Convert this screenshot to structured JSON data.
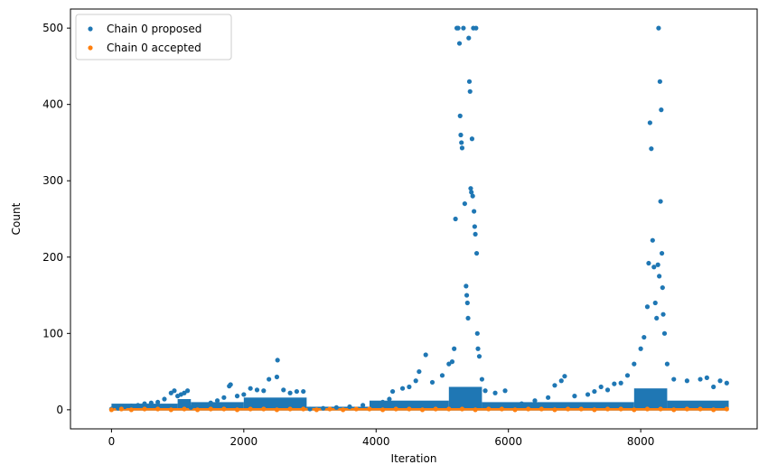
{
  "chart_data": {
    "type": "scatter",
    "title": "",
    "xlabel": "Iteration",
    "ylabel": "Count",
    "xlim": [
      -620,
      9760
    ],
    "ylim": [
      -25,
      525
    ],
    "xticks": [
      0,
      2000,
      4000,
      6000,
      8000
    ],
    "yticks": [
      0,
      100,
      200,
      300,
      400,
      500
    ],
    "xtick_labels": [
      "0",
      "2000",
      "4000",
      "6000",
      "8000"
    ],
    "ytick_labels": [
      "0",
      "100",
      "200",
      "300",
      "400",
      "500"
    ],
    "grid": false,
    "legend_position": "top-left",
    "series": [
      {
        "name": "Chain 0 proposed",
        "color": "#1f77b4",
        "points": [
          [
            0,
            1
          ],
          [
            100,
            2
          ],
          [
            200,
            4
          ],
          [
            300,
            5
          ],
          [
            400,
            6
          ],
          [
            500,
            8
          ],
          [
            600,
            9
          ],
          [
            700,
            10
          ],
          [
            800,
            14
          ],
          [
            900,
            22
          ],
          [
            950,
            25
          ],
          [
            1000,
            18
          ],
          [
            1050,
            20
          ],
          [
            1100,
            22
          ],
          [
            1150,
            25
          ],
          [
            1200,
            3
          ],
          [
            1300,
            4
          ],
          [
            1400,
            6
          ],
          [
            1500,
            9
          ],
          [
            1600,
            12
          ],
          [
            1700,
            16
          ],
          [
            1780,
            31
          ],
          [
            1800,
            33
          ],
          [
            1900,
            18
          ],
          [
            2000,
            20
          ],
          [
            2100,
            28
          ],
          [
            2200,
            26
          ],
          [
            2300,
            25
          ],
          [
            2380,
            40
          ],
          [
            2500,
            43
          ],
          [
            2510,
            65
          ],
          [
            2600,
            26
          ],
          [
            2700,
            22
          ],
          [
            2800,
            24
          ],
          [
            2900,
            24
          ],
          [
            3000,
            1
          ],
          [
            3200,
            2
          ],
          [
            3400,
            3
          ],
          [
            3600,
            4
          ],
          [
            3800,
            6
          ],
          [
            4000,
            8
          ],
          [
            4100,
            10
          ],
          [
            4200,
            14
          ],
          [
            4250,
            24
          ],
          [
            4400,
            28
          ],
          [
            4500,
            30
          ],
          [
            4600,
            38
          ],
          [
            4650,
            50
          ],
          [
            4750,
            72
          ],
          [
            4850,
            36
          ],
          [
            5000,
            45
          ],
          [
            5100,
            60
          ],
          [
            5150,
            63
          ],
          [
            5180,
            80
          ],
          [
            5200,
            250
          ],
          [
            5220,
            500
          ],
          [
            5240,
            500
          ],
          [
            5260,
            480
          ],
          [
            5270,
            385
          ],
          [
            5280,
            360
          ],
          [
            5290,
            350
          ],
          [
            5300,
            343
          ],
          [
            5320,
            500
          ],
          [
            5340,
            270
          ],
          [
            5360,
            162
          ],
          [
            5370,
            150
          ],
          [
            5380,
            140
          ],
          [
            5390,
            120
          ],
          [
            5400,
            487
          ],
          [
            5410,
            430
          ],
          [
            5420,
            417
          ],
          [
            5430,
            290
          ],
          [
            5440,
            285
          ],
          [
            5450,
            355
          ],
          [
            5460,
            280
          ],
          [
            5470,
            500
          ],
          [
            5480,
            260
          ],
          [
            5490,
            240
          ],
          [
            5500,
            230
          ],
          [
            5510,
            500
          ],
          [
            5520,
            205
          ],
          [
            5530,
            100
          ],
          [
            5540,
            80
          ],
          [
            5560,
            70
          ],
          [
            5600,
            40
          ],
          [
            5650,
            25
          ],
          [
            5800,
            22
          ],
          [
            5950,
            25
          ],
          [
            6200,
            8
          ],
          [
            6400,
            12
          ],
          [
            6600,
            16
          ],
          [
            6700,
            32
          ],
          [
            6800,
            38
          ],
          [
            6850,
            44
          ],
          [
            7000,
            18
          ],
          [
            7200,
            20
          ],
          [
            7300,
            24
          ],
          [
            7400,
            30
          ],
          [
            7500,
            26
          ],
          [
            7600,
            34
          ],
          [
            7700,
            35
          ],
          [
            7800,
            45
          ],
          [
            7900,
            60
          ],
          [
            8000,
            80
          ],
          [
            8050,
            95
          ],
          [
            8100,
            135
          ],
          [
            8120,
            192
          ],
          [
            8140,
            376
          ],
          [
            8160,
            342
          ],
          [
            8180,
            222
          ],
          [
            8200,
            187
          ],
          [
            8220,
            140
          ],
          [
            8240,
            120
          ],
          [
            8260,
            190
          ],
          [
            8270,
            500
          ],
          [
            8280,
            175
          ],
          [
            8290,
            430
          ],
          [
            8300,
            273
          ],
          [
            8310,
            393
          ],
          [
            8320,
            205
          ],
          [
            8330,
            160
          ],
          [
            8340,
            125
          ],
          [
            8360,
            100
          ],
          [
            8400,
            60
          ],
          [
            8500,
            40
          ],
          [
            8700,
            38
          ],
          [
            8900,
            40
          ],
          [
            9000,
            42
          ],
          [
            9100,
            30
          ],
          [
            9200,
            38
          ],
          [
            9300,
            35
          ]
        ]
      },
      {
        "name": "Chain 0 accepted",
        "color": "#ff7f0e",
        "points": [
          [
            0,
            0
          ],
          [
            150,
            1
          ],
          [
            300,
            0
          ],
          [
            500,
            1
          ],
          [
            700,
            1
          ],
          [
            900,
            0
          ],
          [
            1100,
            1
          ],
          [
            1300,
            0
          ],
          [
            1500,
            1
          ],
          [
            1700,
            1
          ],
          [
            1900,
            0
          ],
          [
            2100,
            1
          ],
          [
            2300,
            1
          ],
          [
            2500,
            0
          ],
          [
            2700,
            1
          ],
          [
            2900,
            1
          ],
          [
            3100,
            0
          ],
          [
            3300,
            1
          ],
          [
            3500,
            0
          ],
          [
            3700,
            1
          ],
          [
            3900,
            1
          ],
          [
            4100,
            0
          ],
          [
            4300,
            1
          ],
          [
            4500,
            1
          ],
          [
            4700,
            0
          ],
          [
            4900,
            1
          ],
          [
            5100,
            1
          ],
          [
            5300,
            1
          ],
          [
            5500,
            0
          ],
          [
            5700,
            1
          ],
          [
            5900,
            1
          ],
          [
            6100,
            0
          ],
          [
            6300,
            1
          ],
          [
            6500,
            1
          ],
          [
            6700,
            0
          ],
          [
            6900,
            1
          ],
          [
            7100,
            1
          ],
          [
            7300,
            0
          ],
          [
            7500,
            1
          ],
          [
            7700,
            1
          ],
          [
            7900,
            0
          ],
          [
            8100,
            1
          ],
          [
            8300,
            1
          ],
          [
            8500,
            0
          ],
          [
            8700,
            1
          ],
          [
            8900,
            1
          ],
          [
            9100,
            0
          ],
          [
            9300,
            1
          ]
        ]
      }
    ]
  }
}
